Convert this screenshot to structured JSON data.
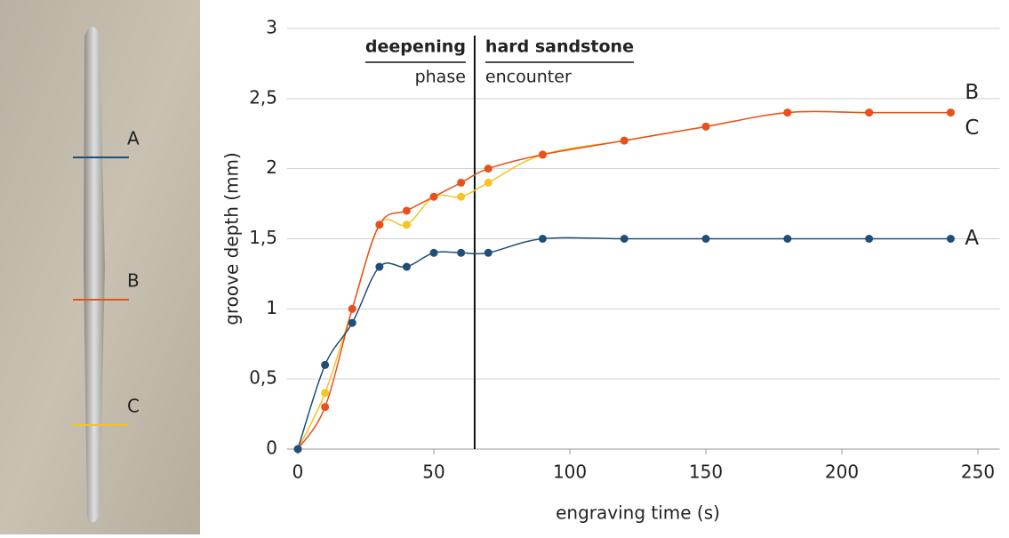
{
  "chart_data": {
    "type": "scatter",
    "x_label": "engraving time (s)",
    "y_label": "groove depth (mm)",
    "x": [
      0,
      10,
      20,
      30,
      40,
      50,
      60,
      70,
      90,
      120,
      150,
      180,
      210,
      240
    ],
    "series": [
      {
        "name": "A",
        "color": "#1f4e79",
        "values": [
          0,
          0.6,
          0.9,
          1.3,
          1.3,
          1.4,
          1.4,
          1.4,
          1.5,
          1.5,
          1.5,
          1.5,
          1.5,
          1.5
        ]
      },
      {
        "name": "B",
        "color": "#e8501e",
        "values": [
          0,
          0.3,
          1.0,
          1.6,
          1.7,
          1.8,
          1.9,
          2.0,
          2.1,
          2.2,
          2.3,
          2.4,
          2.4,
          2.4
        ]
      },
      {
        "name": "C",
        "color": "#f6c324",
        "values": [
          0,
          0.4,
          1.0,
          1.6,
          1.6,
          1.8,
          1.8,
          1.9,
          2.1,
          2.2,
          2.3,
          2.4,
          2.4,
          2.4
        ]
      }
    ],
    "xlim": [
      -4,
      258
    ],
    "ylim": [
      0,
      3
    ],
    "xticks": [
      0,
      50,
      100,
      150,
      200,
      250
    ],
    "yticks": [
      0,
      {
        "value": 0.5,
        "label": "0,5"
      },
      1,
      {
        "value": 1.5,
        "label": "1,5"
      },
      2,
      {
        "value": 2.5,
        "label": "2,5"
      },
      3
    ],
    "grid": true,
    "phase_boundary": 65,
    "annotations": {
      "left_bold": "deepening",
      "left": "phase",
      "right_bold": "hard sandstone",
      "right": "encounter"
    }
  }
}
